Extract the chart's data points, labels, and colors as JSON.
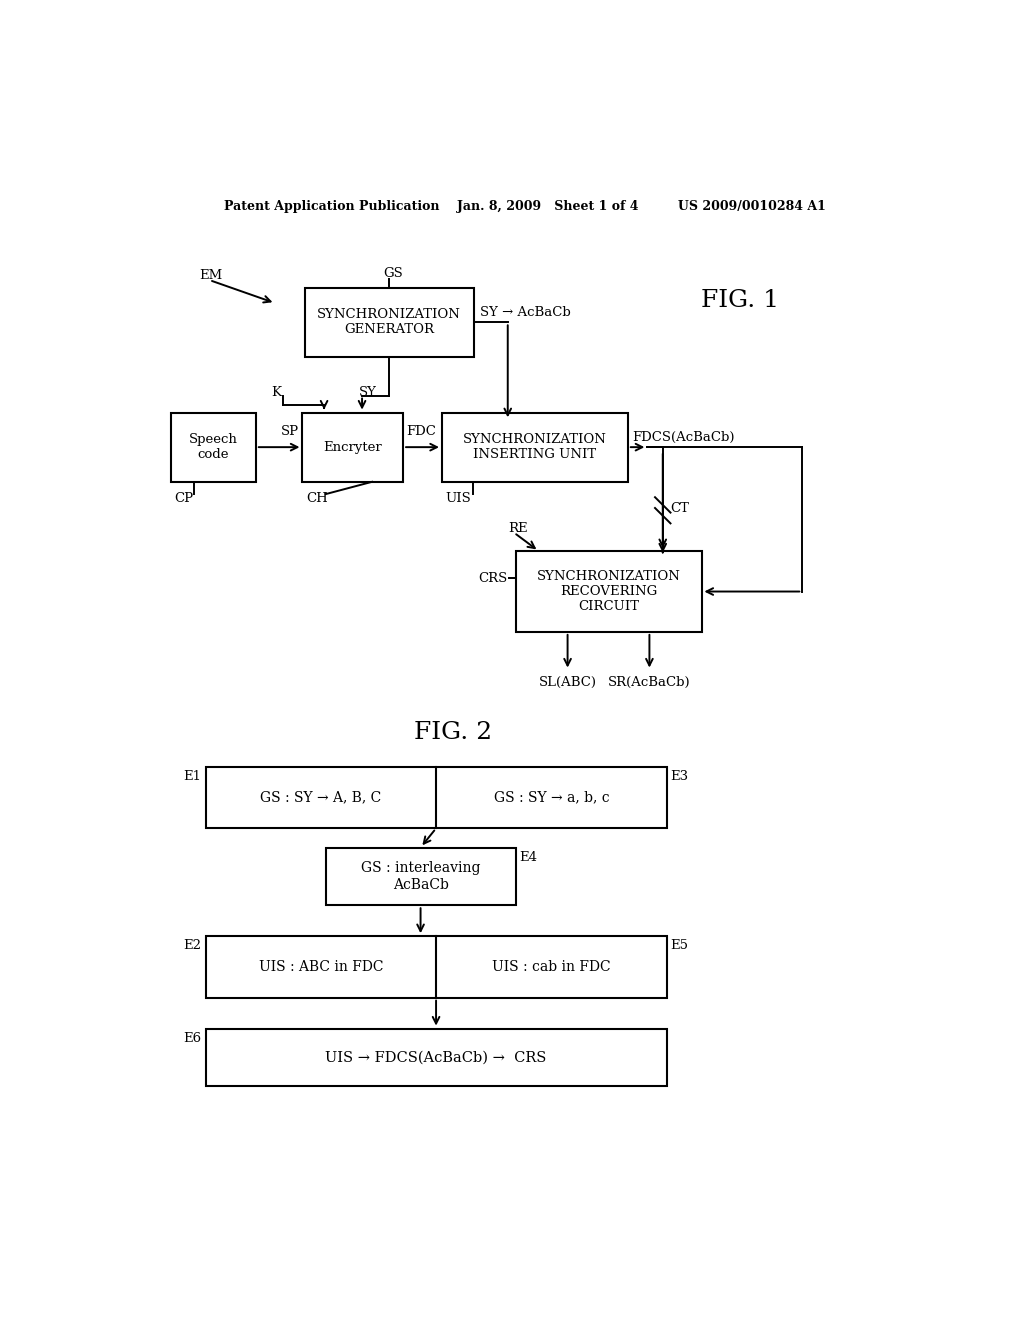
{
  "bg_color": "#ffffff",
  "header": "Patent Application Publication    Jan. 8, 2009   Sheet 1 of 4         US 2009/0010284 A1",
  "fig1_label": "FIG. 1",
  "fig2_label": "FIG. 2",
  "font": "DejaVu Serif"
}
